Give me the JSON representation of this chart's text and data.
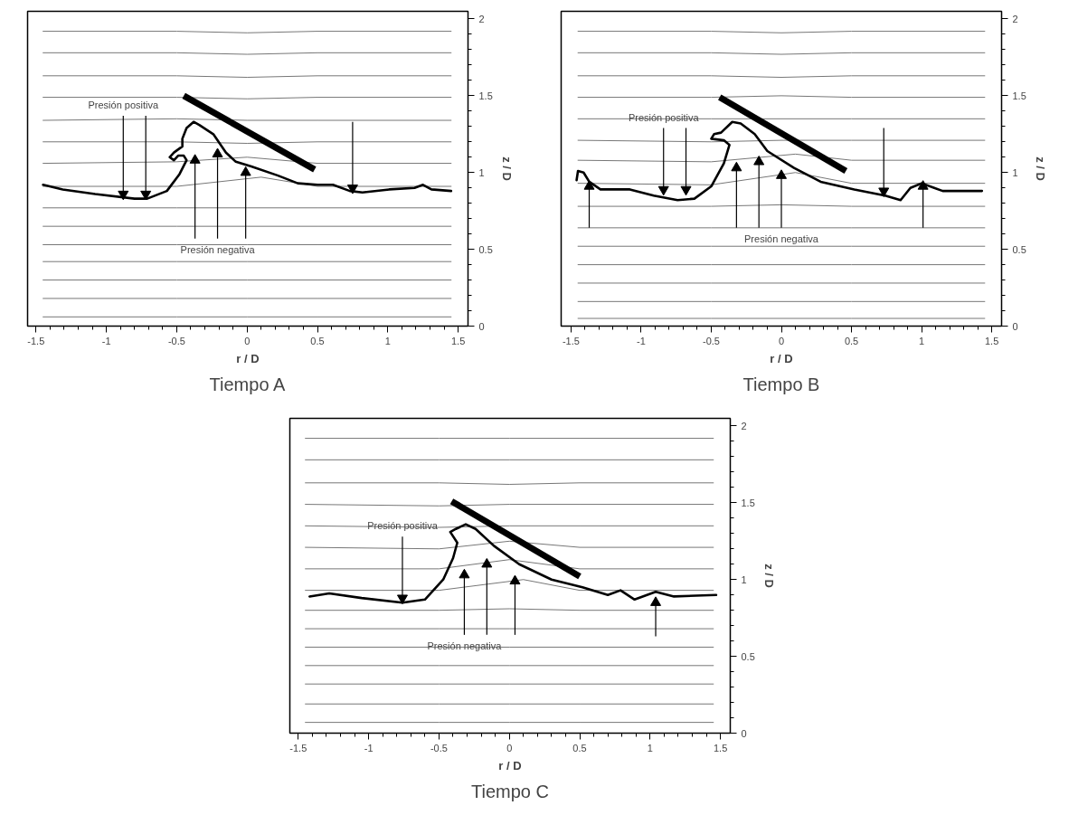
{
  "chart_data": [
    {
      "type": "line",
      "title": "Tiempo A",
      "xlabel": "r / D",
      "ylabel": "z / D",
      "xlim": [
        -1.56,
        1.57
      ],
      "ylim": [
        0,
        2.05
      ],
      "xticks": [
        -1.5,
        -1,
        -0.5,
        0,
        0.5,
        1,
        1.5
      ],
      "yticks": [
        0,
        0.5,
        1,
        1.5,
        2
      ],
      "annotations": [
        {
          "text": "Presión positiva",
          "x": -0.88,
          "y": 1.37
        },
        {
          "text": "Presión negativa",
          "x": -0.21,
          "y": 0.57
        }
      ],
      "series": [
        {
          "color": "#777777",
          "x": [
            -1.45,
            -0.5,
            0,
            0.5,
            1.45
          ],
          "values": [
            1.92,
            1.92,
            1.91,
            1.92,
            1.92
          ]
        },
        {
          "color": "#777777",
          "x": [
            -1.45,
            -0.5,
            0,
            0.5,
            1.45
          ],
          "values": [
            1.78,
            1.78,
            1.77,
            1.78,
            1.78
          ]
        },
        {
          "color": "#777777",
          "x": [
            -1.45,
            -0.5,
            0,
            0.5,
            1.45
          ],
          "values": [
            1.63,
            1.63,
            1.62,
            1.63,
            1.63
          ]
        },
        {
          "color": "#777777",
          "x": [
            -1.45,
            -0.5,
            0,
            0.5,
            1.45
          ],
          "values": [
            1.49,
            1.49,
            1.48,
            1.49,
            1.49
          ]
        },
        {
          "color": "#777777",
          "x": [
            -1.45,
            -0.5,
            0,
            0.5,
            1.45
          ],
          "values": [
            1.34,
            1.35,
            1.34,
            1.34,
            1.34
          ]
        },
        {
          "color": "#777777",
          "x": [
            -1.45,
            -0.5,
            0,
            0.5,
            1.45
          ],
          "values": [
            1.2,
            1.2,
            1.19,
            1.2,
            1.2
          ]
        },
        {
          "color": "#777777",
          "x": [
            -1.45,
            -0.5,
            0,
            0.5,
            1.45
          ],
          "values": [
            1.06,
            1.07,
            1.1,
            1.06,
            1.06
          ]
        },
        {
          "color": "#777777",
          "x": [
            -1.45,
            -0.5,
            0.1,
            0.5,
            1.45
          ],
          "values": [
            0.91,
            0.91,
            0.97,
            0.91,
            0.91
          ]
        },
        {
          "color": "#777777",
          "x": [
            -1.45,
            -0.5,
            0,
            0.5,
            1.45
          ],
          "values": [
            0.77,
            0.77,
            0.77,
            0.77,
            0.77
          ]
        },
        {
          "color": "#777777",
          "x": [
            -1.45,
            -0.5,
            0,
            0.5,
            1.45
          ],
          "values": [
            0.65,
            0.65,
            0.65,
            0.65,
            0.65
          ]
        },
        {
          "color": "#777777",
          "x": [
            -1.45,
            -0.5,
            0,
            0.5,
            1.45
          ],
          "values": [
            0.53,
            0.53,
            0.53,
            0.53,
            0.53
          ]
        },
        {
          "color": "#777777",
          "x": [
            -1.45,
            -0.5,
            0,
            0.5,
            1.45
          ],
          "values": [
            0.42,
            0.42,
            0.42,
            0.42,
            0.42
          ]
        },
        {
          "color": "#777777",
          "x": [
            -1.45,
            -0.5,
            0,
            0.5,
            1.45
          ],
          "values": [
            0.3,
            0.3,
            0.3,
            0.3,
            0.3
          ]
        },
        {
          "color": "#777777",
          "x": [
            -1.45,
            -0.5,
            0,
            0.5,
            1.45
          ],
          "values": [
            0.18,
            0.18,
            0.18,
            0.18,
            0.18
          ]
        },
        {
          "color": "#777777",
          "x": [
            -1.45,
            -0.5,
            0,
            0.5,
            1.45
          ],
          "values": [
            0.06,
            0.06,
            0.06,
            0.06,
            0.06
          ]
        },
        {
          "color": "#000000",
          "x": [
            -1.45,
            -1.31,
            -1.08,
            -0.8,
            -0.71,
            -0.57,
            -0.48,
            -0.43,
            -0.45,
            -0.49,
            -0.52,
            -0.55,
            -0.52,
            -0.46,
            -0.46,
            -0.43,
            -0.38,
            -0.34,
            -0.24,
            -0.15,
            -0.08,
            0.03,
            0.22,
            0.36,
            0.5,
            0.61,
            0.73,
            0.82,
            1.01,
            1.19,
            1.25,
            1.31,
            1.45
          ],
          "values": [
            0.92,
            0.89,
            0.86,
            0.83,
            0.83,
            0.88,
            0.99,
            1.08,
            1.11,
            1.11,
            1.08,
            1.1,
            1.13,
            1.17,
            1.22,
            1.29,
            1.33,
            1.31,
            1.25,
            1.13,
            1.07,
            1.04,
            0.98,
            0.93,
            0.92,
            0.92,
            0.88,
            0.87,
            0.89,
            0.9,
            0.92,
            0.89,
            0.88
          ]
        },
        {
          "color": "#000000",
          "x": [
            -0.45,
            0.48
          ],
          "values": [
            1.5,
            1.02
          ]
        },
        {
          "color": "#000000",
          "marker": "triangle",
          "x": [
            -0.88,
            -0.88
          ],
          "values": [
            1.37,
            0.86
          ]
        },
        {
          "color": "#000000",
          "marker": "triangle",
          "x": [
            -0.72,
            -0.72
          ],
          "values": [
            1.37,
            0.86
          ]
        },
        {
          "color": "#000000",
          "marker": "triangle",
          "x": [
            0.75,
            0.75
          ],
          "values": [
            1.33,
            0.9
          ]
        },
        {
          "color": "#000000",
          "marker": "triangle",
          "x": [
            -0.37,
            -0.37
          ],
          "values": [
            0.57,
            1.08
          ]
        },
        {
          "color": "#000000",
          "marker": "triangle",
          "x": [
            -0.21,
            -0.21
          ],
          "values": [
            0.57,
            1.12
          ]
        },
        {
          "color": "#000000",
          "marker": "triangle",
          "x": [
            -0.01,
            -0.01
          ],
          "values": [
            0.57,
            1.0
          ]
        }
      ]
    },
    {
      "type": "line",
      "title": "Tiempo B",
      "xlabel": "r / D",
      "ylabel": "z / D",
      "xlim": [
        -1.57,
        1.57
      ],
      "ylim": [
        0,
        2.05
      ],
      "xticks": [
        -1.5,
        -1,
        -0.5,
        0,
        0.5,
        1,
        1.5
      ],
      "yticks": [
        0,
        0.5,
        1,
        1.5,
        2
      ],
      "annotations": [
        {
          "text": "Presión positiva",
          "x": -0.84,
          "y": 1.29
        },
        {
          "text": "Presión negativa",
          "x": 0.0,
          "y": 0.64
        }
      ],
      "series": [
        {
          "color": "#777777",
          "x": [
            -1.45,
            -0.5,
            0,
            0.5,
            1.45
          ],
          "values": [
            1.92,
            1.92,
            1.91,
            1.92,
            1.92
          ]
        },
        {
          "color": "#777777",
          "x": [
            -1.45,
            -0.5,
            0,
            0.5,
            1.45
          ],
          "values": [
            1.78,
            1.78,
            1.77,
            1.78,
            1.78
          ]
        },
        {
          "color": "#777777",
          "x": [
            -1.45,
            -0.5,
            0,
            0.5,
            1.45
          ],
          "values": [
            1.63,
            1.63,
            1.62,
            1.63,
            1.63
          ]
        },
        {
          "color": "#777777",
          "x": [
            -1.45,
            -0.5,
            0,
            0.5,
            1.45
          ],
          "values": [
            1.49,
            1.49,
            1.5,
            1.49,
            1.49
          ]
        },
        {
          "color": "#777777",
          "x": [
            -1.45,
            -0.5,
            0,
            0.5,
            1.45
          ],
          "values": [
            1.35,
            1.35,
            1.35,
            1.35,
            1.35
          ]
        },
        {
          "color": "#777777",
          "x": [
            -1.45,
            -0.5,
            0,
            0.5,
            1.45
          ],
          "values": [
            1.21,
            1.2,
            1.21,
            1.21,
            1.21
          ]
        },
        {
          "color": "#777777",
          "x": [
            -1.45,
            -0.5,
            0.1,
            0.5,
            1.45
          ],
          "values": [
            1.08,
            1.07,
            1.12,
            1.08,
            1.08
          ]
        },
        {
          "color": "#777777",
          "x": [
            -1.45,
            -0.5,
            0.1,
            0.5,
            1.45
          ],
          "values": [
            0.93,
            0.92,
            1.0,
            0.93,
            0.93
          ]
        },
        {
          "color": "#777777",
          "x": [
            -1.45,
            -0.5,
            0,
            0.5,
            1.45
          ],
          "values": [
            0.78,
            0.78,
            0.79,
            0.78,
            0.78
          ]
        },
        {
          "color": "#777777",
          "x": [
            -1.45,
            -0.5,
            0,
            0.5,
            1.45
          ],
          "values": [
            0.64,
            0.64,
            0.64,
            0.64,
            0.64
          ]
        },
        {
          "color": "#777777",
          "x": [
            -1.45,
            -0.5,
            0,
            0.5,
            1.45
          ],
          "values": [
            0.52,
            0.52,
            0.52,
            0.52,
            0.52
          ]
        },
        {
          "color": "#777777",
          "x": [
            -1.45,
            -0.5,
            0,
            0.5,
            1.45
          ],
          "values": [
            0.4,
            0.4,
            0.4,
            0.4,
            0.4
          ]
        },
        {
          "color": "#777777",
          "x": [
            -1.45,
            -0.5,
            0,
            0.5,
            1.45
          ],
          "values": [
            0.28,
            0.28,
            0.28,
            0.28,
            0.28
          ]
        },
        {
          "color": "#777777",
          "x": [
            -1.45,
            -0.5,
            0,
            0.5,
            1.45
          ],
          "values": [
            0.16,
            0.16,
            0.16,
            0.16,
            0.16
          ]
        },
        {
          "color": "#777777",
          "x": [
            -1.45,
            -0.5,
            0,
            0.5,
            1.45
          ],
          "values": [
            0.05,
            0.05,
            0.05,
            0.05,
            0.05
          ]
        },
        {
          "color": "#000000",
          "x": [
            -1.46,
            -1.45,
            -1.41,
            -1.37,
            -1.29,
            -1.08,
            -0.91,
            -0.74,
            -0.62,
            -0.5,
            -0.41,
            -0.37,
            -0.41,
            -0.5,
            -0.48,
            -0.43,
            -0.35,
            -0.29,
            -0.19,
            -0.1,
            0.09,
            0.28,
            0.52,
            0.74,
            0.85,
            0.92,
            1.0,
            1.09,
            1.15,
            1.43
          ],
          "values": [
            0.95,
            1.01,
            1.0,
            0.94,
            0.89,
            0.89,
            0.85,
            0.82,
            0.83,
            0.91,
            1.06,
            1.18,
            1.21,
            1.22,
            1.25,
            1.26,
            1.33,
            1.32,
            1.25,
            1.14,
            1.03,
            0.94,
            0.89,
            0.85,
            0.82,
            0.9,
            0.93,
            0.9,
            0.88,
            0.88
          ]
        },
        {
          "color": "#000000",
          "x": [
            -0.44,
            0.46
          ],
          "values": [
            1.49,
            1.01
          ]
        },
        {
          "color": "#000000",
          "marker": "triangle",
          "x": [
            -0.84,
            -0.84
          ],
          "values": [
            1.29,
            0.89
          ]
        },
        {
          "color": "#000000",
          "marker": "triangle",
          "x": [
            -0.68,
            -0.68
          ],
          "values": [
            1.29,
            0.89
          ]
        },
        {
          "color": "#000000",
          "marker": "triangle",
          "x": [
            0.73,
            0.73
          ],
          "values": [
            1.29,
            0.88
          ]
        },
        {
          "color": "#000000",
          "marker": "triangle",
          "x": [
            -1.37,
            -1.37
          ],
          "values": [
            0.64,
            0.91
          ]
        },
        {
          "color": "#000000",
          "marker": "triangle",
          "x": [
            -0.32,
            -0.32
          ],
          "values": [
            0.64,
            1.03
          ]
        },
        {
          "color": "#000000",
          "marker": "triangle",
          "x": [
            -0.16,
            -0.16
          ],
          "values": [
            0.64,
            1.07
          ]
        },
        {
          "color": "#000000",
          "marker": "triangle",
          "x": [
            0.0,
            0.0
          ],
          "values": [
            0.64,
            0.98
          ]
        },
        {
          "color": "#000000",
          "marker": "triangle",
          "x": [
            1.01,
            1.01
          ],
          "values": [
            0.64,
            0.91
          ]
        }
      ]
    },
    {
      "type": "line",
      "title": "Tiempo C",
      "xlabel": "r / D",
      "ylabel": "z / D",
      "xlim": [
        -1.56,
        1.57
      ],
      "ylim": [
        0,
        2.05
      ],
      "xticks": [
        -1.5,
        -1,
        -0.5,
        0,
        0.5,
        1,
        1.5
      ],
      "yticks": [
        0,
        0.5,
        1,
        1.5,
        2
      ],
      "annotations": [
        {
          "text": "Presión positiva",
          "x": -0.76,
          "y": 1.28
        },
        {
          "text": "Presión negativa",
          "x": -0.32,
          "y": 0.64
        }
      ],
      "series": [
        {
          "color": "#777777",
          "x": [
            -1.45,
            -0.5,
            0,
            0.5,
            1.45
          ],
          "values": [
            1.92,
            1.92,
            1.92,
            1.92,
            1.92
          ]
        },
        {
          "color": "#777777",
          "x": [
            -1.45,
            -0.5,
            0,
            0.5,
            1.45
          ],
          "values": [
            1.78,
            1.78,
            1.78,
            1.78,
            1.78
          ]
        },
        {
          "color": "#777777",
          "x": [
            -1.45,
            -0.5,
            0,
            0.5,
            1.45
          ],
          "values": [
            1.63,
            1.63,
            1.62,
            1.63,
            1.63
          ]
        },
        {
          "color": "#777777",
          "x": [
            -1.45,
            -0.5,
            0,
            0.5,
            1.45
          ],
          "values": [
            1.49,
            1.48,
            1.49,
            1.49,
            1.49
          ]
        },
        {
          "color": "#777777",
          "x": [
            -1.45,
            -0.5,
            0,
            0.5,
            1.45
          ],
          "values": [
            1.35,
            1.34,
            1.35,
            1.35,
            1.35
          ]
        },
        {
          "color": "#777777",
          "x": [
            -1.45,
            -0.5,
            0,
            0.5,
            1.45
          ],
          "values": [
            1.21,
            1.2,
            1.25,
            1.21,
            1.21
          ]
        },
        {
          "color": "#777777",
          "x": [
            -1.45,
            -0.5,
            0,
            0.5,
            1.45
          ],
          "values": [
            1.07,
            1.07,
            1.13,
            1.07,
            1.07
          ]
        },
        {
          "color": "#777777",
          "x": [
            -1.45,
            -0.5,
            0.1,
            0.5,
            1.45
          ],
          "values": [
            0.93,
            0.93,
            1.0,
            0.93,
            0.93
          ]
        },
        {
          "color": "#777777",
          "x": [
            -1.45,
            -0.5,
            0,
            0.5,
            1.45
          ],
          "values": [
            0.8,
            0.8,
            0.81,
            0.8,
            0.8
          ]
        },
        {
          "color": "#777777",
          "x": [
            -1.45,
            -0.5,
            0,
            0.5,
            1.45
          ],
          "values": [
            0.68,
            0.68,
            0.68,
            0.68,
            0.68
          ]
        },
        {
          "color": "#777777",
          "x": [
            -1.45,
            -0.5,
            0,
            0.5,
            1.45
          ],
          "values": [
            0.56,
            0.56,
            0.56,
            0.56,
            0.56
          ]
        },
        {
          "color": "#777777",
          "x": [
            -1.45,
            -0.5,
            0,
            0.5,
            1.45
          ],
          "values": [
            0.44,
            0.44,
            0.44,
            0.44,
            0.44
          ]
        },
        {
          "color": "#777777",
          "x": [
            -1.45,
            -0.5,
            0,
            0.5,
            1.45
          ],
          "values": [
            0.32,
            0.32,
            0.32,
            0.32,
            0.32
          ]
        },
        {
          "color": "#777777",
          "x": [
            -1.45,
            -0.5,
            0,
            0.5,
            1.45
          ],
          "values": [
            0.19,
            0.19,
            0.19,
            0.19,
            0.19
          ]
        },
        {
          "color": "#777777",
          "x": [
            -1.45,
            -0.5,
            0,
            0.5,
            1.45
          ],
          "values": [
            0.07,
            0.07,
            0.07,
            0.07,
            0.07
          ]
        },
        {
          "color": "#000000",
          "x": [
            -1.42,
            -1.28,
            -1.05,
            -0.76,
            -0.6,
            -0.47,
            -0.4,
            -0.37,
            -0.42,
            -0.38,
            -0.31,
            -0.24,
            -0.11,
            0.07,
            0.3,
            0.52,
            0.7,
            0.79,
            0.89,
            1.04,
            1.17,
            1.47
          ],
          "values": [
            0.89,
            0.91,
            0.88,
            0.85,
            0.87,
            1.0,
            1.14,
            1.24,
            1.31,
            1.33,
            1.36,
            1.33,
            1.22,
            1.1,
            1.0,
            0.95,
            0.9,
            0.93,
            0.87,
            0.92,
            0.89,
            0.9
          ]
        },
        {
          "color": "#000000",
          "x": [
            -0.41,
            0.5
          ],
          "values": [
            1.51,
            1.02
          ]
        },
        {
          "color": "#000000",
          "marker": "triangle",
          "x": [
            -0.76,
            -0.76
          ],
          "values": [
            1.28,
            0.88
          ]
        },
        {
          "color": "#000000",
          "marker": "triangle",
          "x": [
            -0.32,
            -0.32
          ],
          "values": [
            0.64,
            1.03
          ]
        },
        {
          "color": "#000000",
          "marker": "triangle",
          "x": [
            -0.16,
            -0.16
          ],
          "values": [
            0.64,
            1.1
          ]
        },
        {
          "color": "#000000",
          "marker": "triangle",
          "x": [
            0.04,
            0.04
          ],
          "values": [
            0.64,
            0.99
          ]
        },
        {
          "color": "#000000",
          "marker": "triangle",
          "x": [
            1.04,
            1.04
          ],
          "values": [
            0.63,
            0.85
          ]
        }
      ]
    }
  ]
}
